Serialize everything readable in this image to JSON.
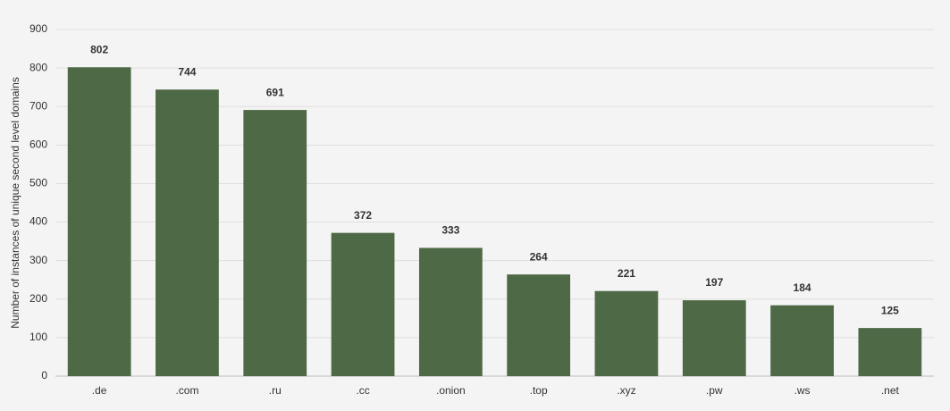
{
  "chart_data": {
    "type": "bar",
    "y_label": "Number of instances of unique second level domains",
    "categories": [
      ".de",
      ".com",
      ".ru",
      ".cc",
      ".onion",
      ".top",
      ".xyz",
      ".pw",
      ".ws",
      ".net"
    ],
    "values": [
      802,
      744,
      691,
      372,
      333,
      264,
      221,
      197,
      184,
      125
    ],
    "color": "#4e6945",
    "ylim": [
      0,
      900
    ],
    "yticks": [
      0,
      100,
      200,
      300,
      400,
      500,
      600,
      700,
      800,
      900
    ],
    "grid": true
  }
}
